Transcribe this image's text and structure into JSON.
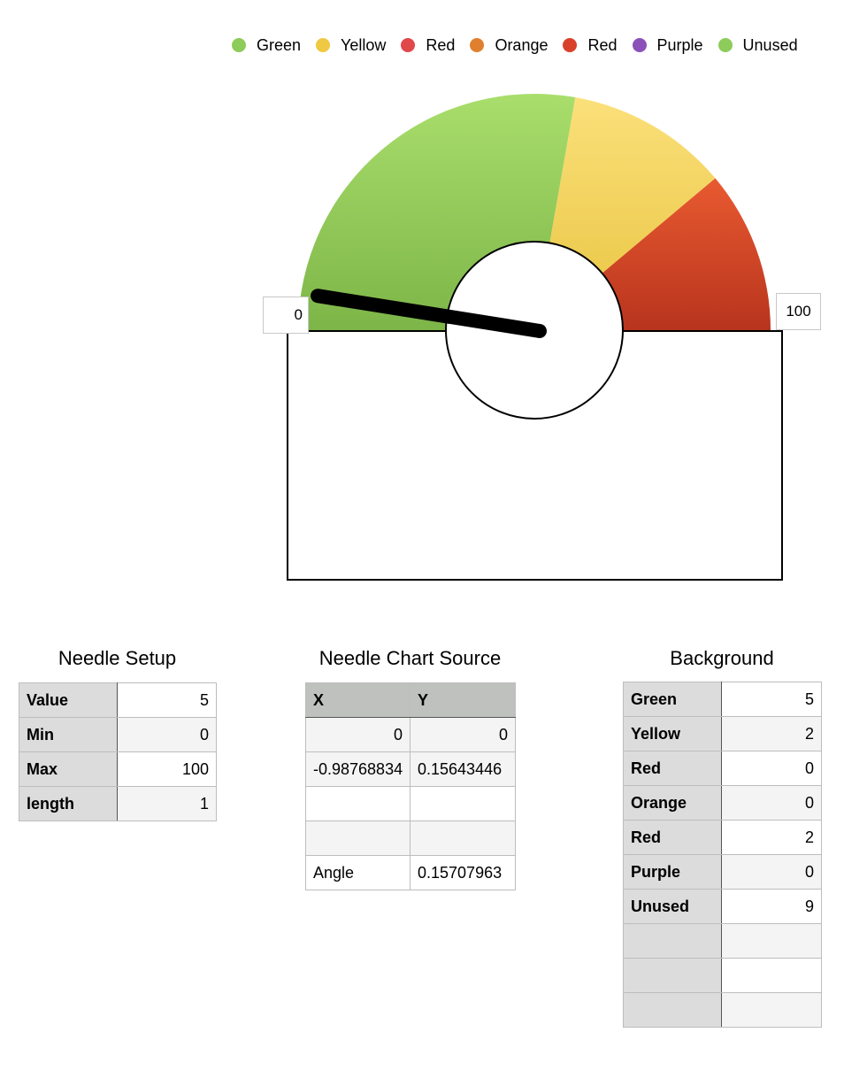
{
  "legend": [
    {
      "label": "Green",
      "color": "#8dcb5a"
    },
    {
      "label": "Yellow",
      "color": "#eec941"
    },
    {
      "label": "Red",
      "color": "#e0484a"
    },
    {
      "label": "Orange",
      "color": "#e0802f"
    },
    {
      "label": "Red",
      "color": "#d9402a"
    },
    {
      "label": "Purple",
      "color": "#8b51b9"
    },
    {
      "label": "Unused",
      "color": "#8dcb5a"
    }
  ],
  "gauge": {
    "min_label": "0",
    "max_label": "100",
    "value": 5,
    "min": 0,
    "max": 100,
    "segments": [
      {
        "name": "Green",
        "value": 5,
        "color_top": "#a9de6c",
        "color_bottom": "#7db548"
      },
      {
        "name": "Yellow",
        "value": 2,
        "color_top": "#fbe07a",
        "color_bottom": "#e8c440"
      },
      {
        "name": "Red",
        "value": 0,
        "color_top": "#e0484a",
        "color_bottom": "#c03030"
      },
      {
        "name": "Orange",
        "value": 0,
        "color_top": "#e0802f",
        "color_bottom": "#c06020"
      },
      {
        "name": "Red",
        "value": 2,
        "color_top": "#e85a30",
        "color_bottom": "#b8341e"
      },
      {
        "name": "Purple",
        "value": 0,
        "color_top": "#8b51b9",
        "color_bottom": "#6b3199"
      }
    ]
  },
  "needle_setup": {
    "title": "Needle Setup",
    "rows": [
      {
        "key": "Value",
        "val": "5"
      },
      {
        "key": "Min",
        "val": "0"
      },
      {
        "key": "Max",
        "val": "100"
      },
      {
        "key": "length",
        "val": "1"
      }
    ]
  },
  "needle_source": {
    "title": "Needle Chart Source",
    "headers": [
      "X",
      "Y"
    ],
    "rows": [
      [
        "0",
        "0"
      ],
      [
        "-0.98768834",
        "0.15643446"
      ],
      [
        "",
        ""
      ],
      [
        "",
        ""
      ],
      [
        "Angle",
        "0.15707963"
      ]
    ]
  },
  "background": {
    "title": "Background",
    "rows": [
      {
        "key": "Green",
        "val": "5"
      },
      {
        "key": "Yellow",
        "val": "2"
      },
      {
        "key": "Red",
        "val": "0"
      },
      {
        "key": "Orange",
        "val": "0"
      },
      {
        "key": "Red",
        "val": "2"
      },
      {
        "key": "Purple",
        "val": "0"
      },
      {
        "key": "Unused",
        "val": "9"
      },
      {
        "key": "",
        "val": ""
      },
      {
        "key": "",
        "val": ""
      },
      {
        "key": "",
        "val": ""
      }
    ]
  }
}
